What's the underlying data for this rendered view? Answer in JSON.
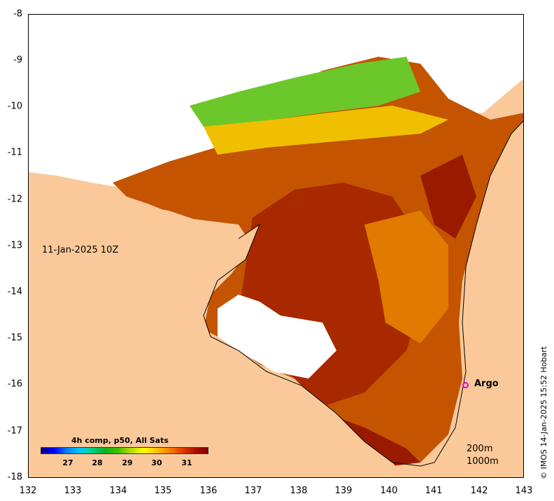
{
  "map": {
    "date_label": "11-Jan-2025 10Z",
    "argo_label": "Argo",
    "contour_labels": [
      "200m",
      "1000m"
    ],
    "credit": "© IMOS 14-Jan-2025 15:52 Hobart",
    "x_ticks": [
      "132",
      "133",
      "134",
      "135",
      "136",
      "137",
      "138",
      "139",
      "140",
      "141",
      "142",
      "143"
    ],
    "y_ticks": [
      "-8",
      "-9",
      "-10",
      "-11",
      "-12",
      "-13",
      "-14",
      "-15",
      "-16",
      "-17",
      "-18"
    ],
    "legend": {
      "title": "4h comp, p50, All Sats",
      "ticks": [
        "27",
        "28",
        "29",
        "30",
        "31"
      ]
    },
    "colors": {
      "land": "#fbc999",
      "no_data": "#ffffff",
      "warm": "#c45400",
      "hot": "#9a1a00"
    }
  }
}
